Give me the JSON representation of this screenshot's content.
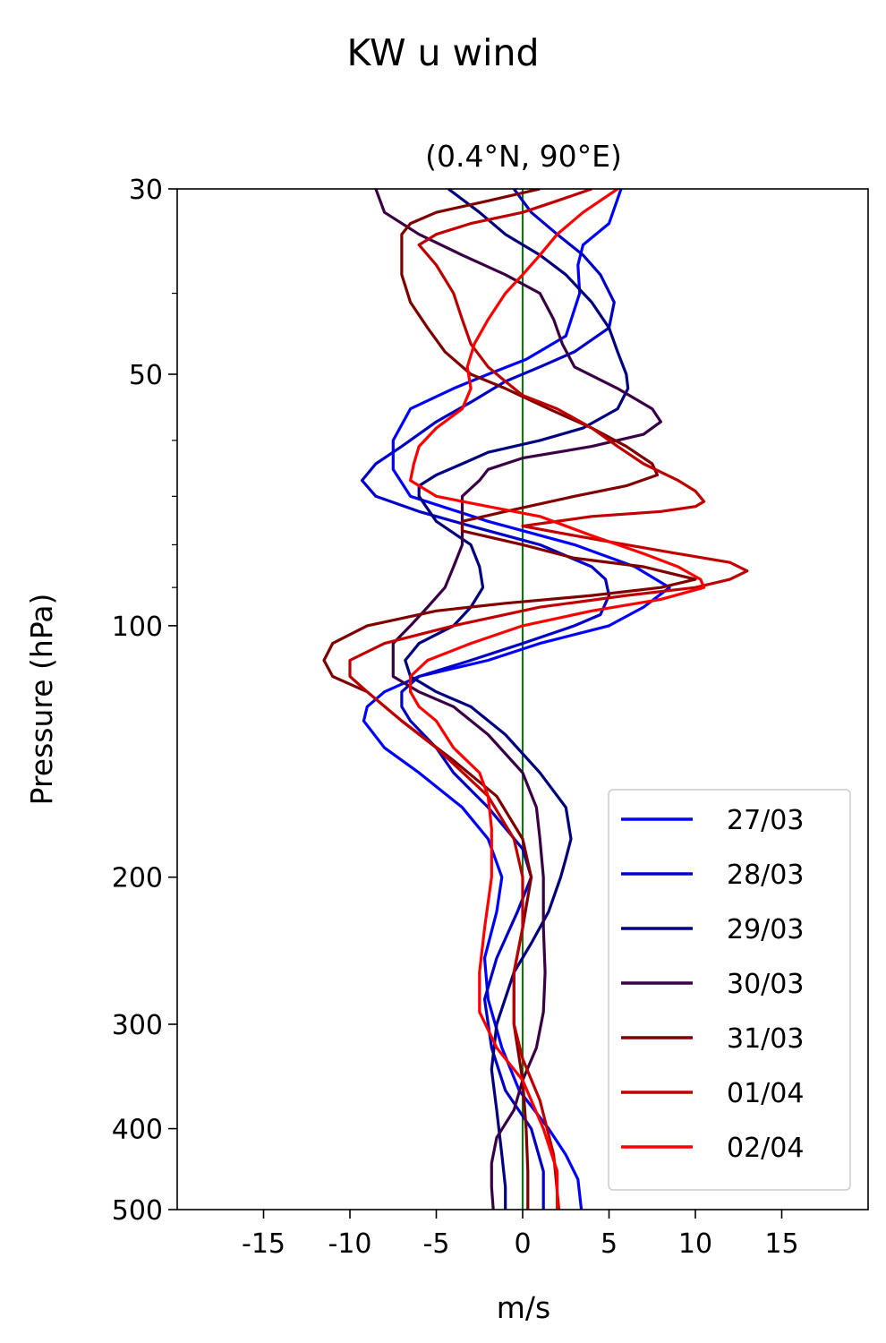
{
  "figure": {
    "suptitle": "KW u wind"
  },
  "chart_data": {
    "type": "line",
    "title": "(0.4°N, 90°E)",
    "xlabel": "m/s",
    "ylabel": "Pressure (hPa)",
    "xlim": [
      -20,
      20
    ],
    "ylim": [
      500,
      30
    ],
    "yscale": "log",
    "yaxis_inverted": true,
    "xticks": [
      -15,
      -10,
      -5,
      0,
      5,
      10,
      15
    ],
    "xtick_labels": [
      "-15",
      "-10",
      "-5",
      "0",
      "5",
      "10",
      "15"
    ],
    "yticks": [
      30,
      50,
      100,
      200,
      300,
      400,
      500
    ],
    "ytick_labels": [
      "30",
      "50",
      "100",
      "200",
      "300",
      "400",
      "500"
    ],
    "yminor_ticks": [
      40,
      60,
      70,
      80,
      90
    ],
    "grid": false,
    "legend_position": "lower-right",
    "reference_line": {
      "x": 0,
      "color": "#008000"
    },
    "series": [
      {
        "name": "27/03",
        "color": "#0000ff",
        "points": [
          [
            5.7,
            30
          ],
          [
            5,
            33
          ],
          [
            3.5,
            35
          ],
          [
            3.2,
            37
          ],
          [
            3.3,
            40
          ],
          [
            2.5,
            45
          ],
          [
            0.2,
            48
          ],
          [
            -2,
            50
          ],
          [
            -4,
            52
          ],
          [
            -6.5,
            55
          ],
          [
            -7.5,
            60
          ],
          [
            -7.5,
            65
          ],
          [
            -6.5,
            70
          ],
          [
            -2,
            75
          ],
          [
            3,
            80
          ],
          [
            6.5,
            85
          ],
          [
            8.5,
            90
          ],
          [
            7,
            95
          ],
          [
            5,
            100
          ],
          [
            1,
            105
          ],
          [
            -2,
            110
          ],
          [
            -6,
            115
          ],
          [
            -8,
            120
          ],
          [
            -9,
            125
          ],
          [
            -9.2,
            130
          ],
          [
            -8,
            140
          ],
          [
            -6,
            150
          ],
          [
            -3.5,
            165
          ],
          [
            -2,
            180
          ],
          [
            -1.2,
            200
          ],
          [
            -1.5,
            220
          ],
          [
            -2.2,
            250
          ],
          [
            -2,
            280
          ],
          [
            -1.2,
            320
          ],
          [
            -0.2,
            360
          ],
          [
            1.5,
            400
          ],
          [
            2.5,
            430
          ],
          [
            3.2,
            460
          ],
          [
            3.4,
            500
          ]
        ]
      },
      {
        "name": "28/03",
        "color": "#0000c8",
        "points": [
          [
            -0.5,
            30
          ],
          [
            0.5,
            32
          ],
          [
            2,
            34
          ],
          [
            3.5,
            36
          ],
          [
            4.5,
            38
          ],
          [
            5.3,
            41
          ],
          [
            5,
            44
          ],
          [
            3,
            47
          ],
          [
            1,
            49
          ],
          [
            -1,
            51
          ],
          [
            -3,
            54
          ],
          [
            -5,
            57
          ],
          [
            -7,
            61
          ],
          [
            -8.5,
            64
          ],
          [
            -9.3,
            67
          ],
          [
            -8.5,
            70
          ],
          [
            -6,
            73
          ],
          [
            -3,
            76
          ],
          [
            1,
            80
          ],
          [
            4,
            85
          ],
          [
            4.8,
            88
          ],
          [
            5,
            92
          ],
          [
            4.5,
            97
          ],
          [
            3,
            100
          ],
          [
            0,
            105
          ],
          [
            -3,
            110
          ],
          [
            -6,
            115
          ],
          [
            -7,
            120
          ],
          [
            -7,
            125
          ],
          [
            -6.5,
            130
          ],
          [
            -5,
            140
          ],
          [
            -4,
            150
          ],
          [
            -2,
            165
          ],
          [
            0,
            185
          ],
          [
            0.5,
            200
          ],
          [
            -0.3,
            220
          ],
          [
            -1.5,
            250
          ],
          [
            -2.2,
            280
          ],
          [
            -1.8,
            320
          ],
          [
            -1,
            360
          ],
          [
            0.5,
            400
          ],
          [
            1.2,
            450
          ],
          [
            1.2,
            500
          ]
        ]
      },
      {
        "name": "29/03",
        "color": "#000080",
        "points": [
          [
            -4.3,
            30
          ],
          [
            -2.5,
            32
          ],
          [
            -1,
            34
          ],
          [
            1,
            36
          ],
          [
            2.5,
            38
          ],
          [
            4,
            41
          ],
          [
            5,
            44
          ],
          [
            5.5,
            47
          ],
          [
            6,
            50
          ],
          [
            6.1,
            52
          ],
          [
            5.5,
            55
          ],
          [
            3.5,
            58
          ],
          [
            1,
            60
          ],
          [
            -2,
            62
          ],
          [
            -3.5,
            64
          ],
          [
            -5,
            66
          ],
          [
            -6,
            68
          ],
          [
            -6,
            70
          ],
          [
            -5,
            75
          ],
          [
            -3,
            80
          ],
          [
            -2.5,
            85
          ],
          [
            -2.3,
            90
          ],
          [
            -3,
            95
          ],
          [
            -4,
            100
          ],
          [
            -6,
            105
          ],
          [
            -6.8,
            110
          ],
          [
            -6.5,
            115
          ],
          [
            -5,
            120
          ],
          [
            -3,
            125
          ],
          [
            -1,
            135
          ],
          [
            1,
            150
          ],
          [
            2.5,
            165
          ],
          [
            2.8,
            180
          ],
          [
            2.5,
            190
          ],
          [
            2.2,
            200
          ],
          [
            1.5,
            220
          ],
          [
            0.5,
            240
          ],
          [
            -0.5,
            260
          ],
          [
            -1.5,
            300
          ],
          [
            -1.8,
            340
          ],
          [
            -1.5,
            380
          ],
          [
            -1.2,
            430
          ],
          [
            -1,
            470
          ],
          [
            -1,
            500
          ]
        ]
      },
      {
        "name": "30/03",
        "color": "#3a0045",
        "points": [
          [
            -8.5,
            30
          ],
          [
            -8,
            32
          ],
          [
            -6,
            34
          ],
          [
            -3.5,
            36
          ],
          [
            -1,
            38
          ],
          [
            1,
            40
          ],
          [
            1.8,
            43
          ],
          [
            2.3,
            46
          ],
          [
            3,
            49
          ],
          [
            5.5,
            52
          ],
          [
            7.5,
            55
          ],
          [
            8,
            57
          ],
          [
            7,
            59
          ],
          [
            4,
            61
          ],
          [
            0,
            63
          ],
          [
            -2,
            65
          ],
          [
            -2.5,
            67
          ],
          [
            -3.5,
            70
          ],
          [
            -3.5,
            75
          ],
          [
            -3.5,
            80
          ],
          [
            -4,
            85
          ],
          [
            -4.5,
            90
          ],
          [
            -5.5,
            95
          ],
          [
            -6.5,
            100
          ],
          [
            -7.5,
            105
          ],
          [
            -7.5,
            110
          ],
          [
            -7.5,
            115
          ],
          [
            -6,
            120
          ],
          [
            -4,
            125
          ],
          [
            -2,
            135
          ],
          [
            0,
            150
          ],
          [
            0.8,
            165
          ],
          [
            1,
            180
          ],
          [
            1.2,
            200
          ],
          [
            1.2,
            230
          ],
          [
            1.3,
            260
          ],
          [
            1.2,
            290
          ],
          [
            0.8,
            320
          ],
          [
            0,
            350
          ],
          [
            -0.5,
            380
          ],
          [
            -1.5,
            410
          ],
          [
            -1.8,
            440
          ],
          [
            -1.8,
            470
          ],
          [
            -1.7,
            500
          ]
        ]
      },
      {
        "name": "31/03",
        "color": "#800000",
        "points": [
          [
            1,
            30
          ],
          [
            -2,
            31
          ],
          [
            -5,
            32
          ],
          [
            -6.5,
            33
          ],
          [
            -7,
            34
          ],
          [
            -7,
            36
          ],
          [
            -7,
            38
          ],
          [
            -6.5,
            41
          ],
          [
            -5.5,
            44
          ],
          [
            -4.5,
            47
          ],
          [
            -3,
            50
          ],
          [
            -1,
            52
          ],
          [
            1.5,
            55
          ],
          [
            4,
            58
          ],
          [
            6,
            61
          ],
          [
            7.5,
            64
          ],
          [
            7.8,
            66
          ],
          [
            6,
            68
          ],
          [
            3,
            70
          ],
          [
            -1,
            73
          ],
          [
            -3.5,
            75
          ],
          [
            -3.5,
            77
          ],
          [
            0,
            80
          ],
          [
            3,
            83
          ],
          [
            7,
            85
          ],
          [
            10,
            88
          ],
          [
            8,
            90
          ],
          [
            4,
            92
          ],
          [
            -1,
            94
          ],
          [
            -5,
            96
          ],
          [
            -9,
            100
          ],
          [
            -11,
            105
          ],
          [
            -11.5,
            110
          ],
          [
            -11,
            115
          ],
          [
            -9,
            120
          ],
          [
            -7,
            130
          ],
          [
            -4,
            145
          ],
          [
            -1.5,
            160
          ],
          [
            0,
            180
          ],
          [
            0.5,
            200
          ],
          [
            0,
            230
          ],
          [
            -0.5,
            260
          ],
          [
            -0.5,
            300
          ],
          [
            0,
            350
          ],
          [
            0.2,
            400
          ],
          [
            0.3,
            450
          ],
          [
            0.3,
            500
          ]
        ]
      },
      {
        "name": "01/04",
        "color": "#c00000",
        "points": [
          [
            4,
            30
          ],
          [
            2,
            31
          ],
          [
            0,
            32
          ],
          [
            -3,
            33
          ],
          [
            -5,
            34
          ],
          [
            -6,
            35
          ],
          [
            -5,
            37
          ],
          [
            -4,
            40
          ],
          [
            -3.5,
            43
          ],
          [
            -3,
            46
          ],
          [
            -2,
            49
          ],
          [
            -1,
            51
          ],
          [
            0,
            53
          ],
          [
            2,
            55
          ],
          [
            4,
            58
          ],
          [
            5.5,
            61
          ],
          [
            7,
            64
          ],
          [
            9,
            67
          ],
          [
            10,
            69
          ],
          [
            10.5,
            71
          ],
          [
            10,
            72
          ],
          [
            8,
            73
          ],
          [
            4,
            74
          ],
          [
            0,
            76
          ],
          [
            3,
            78
          ],
          [
            6,
            80
          ],
          [
            9,
            82
          ],
          [
            12,
            84
          ],
          [
            13,
            86
          ],
          [
            12,
            88
          ],
          [
            10,
            90
          ],
          [
            6,
            92
          ],
          [
            1,
            95
          ],
          [
            -4,
            100
          ],
          [
            -8,
            105
          ],
          [
            -10,
            110
          ],
          [
            -10,
            115
          ],
          [
            -9,
            120
          ],
          [
            -7,
            130
          ],
          [
            -5,
            140
          ],
          [
            -2,
            160
          ],
          [
            -0.5,
            180
          ],
          [
            0,
            200
          ],
          [
            0,
            230
          ],
          [
            -0.5,
            260
          ],
          [
            -0.5,
            300
          ],
          [
            0,
            330
          ],
          [
            1,
            370
          ],
          [
            1.8,
            430
          ],
          [
            2.1,
            500
          ]
        ]
      },
      {
        "name": "02/04",
        "color": "#ff0000",
        "points": [
          [
            5.5,
            30
          ],
          [
            3.5,
            32
          ],
          [
            2,
            34
          ],
          [
            1,
            36
          ],
          [
            0,
            38
          ],
          [
            -1,
            40
          ],
          [
            -2,
            43
          ],
          [
            -2.8,
            46
          ],
          [
            -3.2,
            49
          ],
          [
            -3,
            52
          ],
          [
            -3.5,
            55
          ],
          [
            -5,
            58
          ],
          [
            -6,
            61
          ],
          [
            -6.3,
            64
          ],
          [
            -6.5,
            67
          ],
          [
            -5,
            70
          ],
          [
            -2,
            72
          ],
          [
            1,
            74
          ],
          [
            4,
            78
          ],
          [
            7,
            82
          ],
          [
            9,
            85
          ],
          [
            10.3,
            88
          ],
          [
            10.5,
            90
          ],
          [
            8,
            93
          ],
          [
            4,
            96
          ],
          [
            0,
            100
          ],
          [
            -3,
            105
          ],
          [
            -5.5,
            110
          ],
          [
            -6.5,
            115
          ],
          [
            -6.5,
            120
          ],
          [
            -6,
            125
          ],
          [
            -5,
            130
          ],
          [
            -4,
            140
          ],
          [
            -2.5,
            150
          ],
          [
            -2,
            160
          ],
          [
            -1.8,
            175
          ],
          [
            -1.8,
            200
          ],
          [
            -2.2,
            230
          ],
          [
            -2.5,
            260
          ],
          [
            -2.5,
            290
          ],
          [
            -1.5,
            320
          ],
          [
            0,
            350
          ],
          [
            1.2,
            400
          ],
          [
            2,
            450
          ],
          [
            2,
            500
          ]
        ]
      }
    ]
  }
}
